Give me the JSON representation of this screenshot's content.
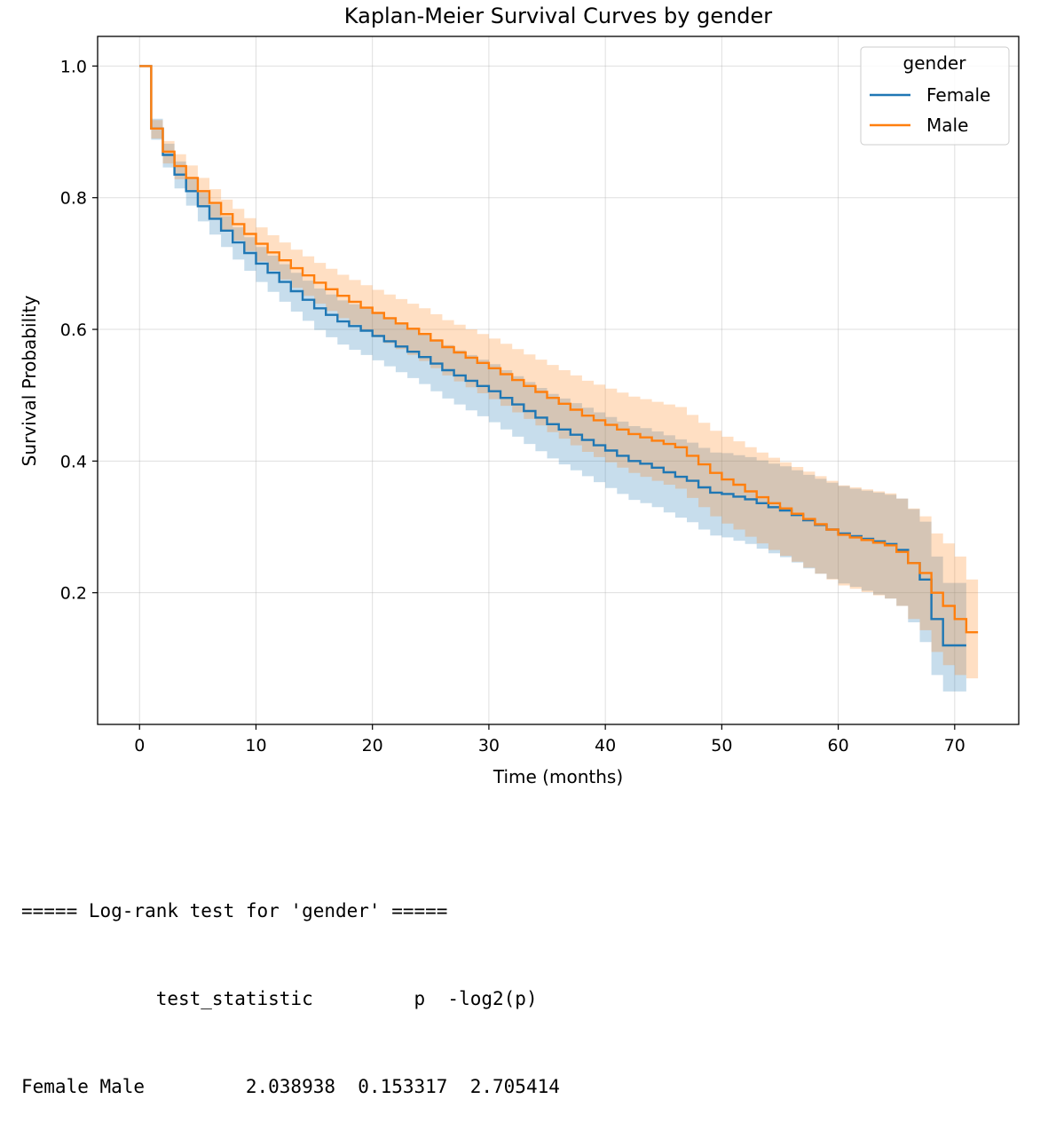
{
  "chart_data": {
    "type": "line",
    "title": "Kaplan-Meier Survival Curves by gender",
    "xlabel": "Time (months)",
    "ylabel": "Survival Probability",
    "xlim": [
      -3.6,
      75.5
    ],
    "ylim": [
      0.0,
      1.045
    ],
    "xticks": [
      0,
      10,
      20,
      30,
      40,
      50,
      60,
      70
    ],
    "xtick_labels": [
      "0",
      "10",
      "20",
      "30",
      "40",
      "50",
      "60",
      "70"
    ],
    "yticks": [
      0.2,
      0.4,
      0.6,
      0.8,
      1.0
    ],
    "ytick_labels": [
      "0.2",
      "0.4",
      "0.6",
      "0.8",
      "1.0"
    ],
    "grid": true,
    "legend": {
      "title": "gender",
      "placement": "top-right"
    },
    "series": [
      {
        "name": "Female",
        "color": "#1f77b4",
        "step": "post",
        "x": [
          0,
          1,
          2,
          3,
          4,
          5,
          6,
          7,
          8,
          9,
          10,
          11,
          12,
          13,
          14,
          15,
          16,
          17,
          18,
          19,
          20,
          21,
          22,
          23,
          24,
          25,
          26,
          27,
          28,
          29,
          30,
          31,
          32,
          33,
          34,
          35,
          36,
          37,
          38,
          39,
          40,
          41,
          42,
          43,
          44,
          45,
          46,
          47,
          48,
          49,
          50,
          51,
          52,
          53,
          54,
          55,
          56,
          57,
          58,
          59,
          60,
          61,
          62,
          63,
          64,
          65,
          66,
          67,
          68,
          69,
          70,
          71
        ],
        "y": [
          1.0,
          0.905,
          0.865,
          0.835,
          0.81,
          0.787,
          0.768,
          0.75,
          0.732,
          0.716,
          0.7,
          0.686,
          0.672,
          0.658,
          0.645,
          0.632,
          0.622,
          0.612,
          0.605,
          0.598,
          0.59,
          0.582,
          0.574,
          0.566,
          0.558,
          0.548,
          0.538,
          0.53,
          0.522,
          0.514,
          0.506,
          0.496,
          0.486,
          0.476,
          0.466,
          0.456,
          0.448,
          0.44,
          0.432,
          0.424,
          0.416,
          0.408,
          0.4,
          0.396,
          0.39,
          0.383,
          0.376,
          0.37,
          0.36,
          0.352,
          0.35,
          0.346,
          0.342,
          0.336,
          0.33,
          0.325,
          0.318,
          0.31,
          0.303,
          0.296,
          0.29,
          0.286,
          0.282,
          0.278,
          0.274,
          0.265,
          0.245,
          0.22,
          0.16,
          0.12,
          0.12,
          0.12
        ],
        "ci_lower": [
          1.0,
          0.888,
          0.846,
          0.814,
          0.788,
          0.764,
          0.744,
          0.725,
          0.706,
          0.689,
          0.672,
          0.657,
          0.642,
          0.627,
          0.613,
          0.599,
          0.588,
          0.577,
          0.569,
          0.561,
          0.553,
          0.544,
          0.535,
          0.526,
          0.517,
          0.506,
          0.495,
          0.486,
          0.477,
          0.468,
          0.459,
          0.448,
          0.437,
          0.426,
          0.415,
          0.404,
          0.395,
          0.386,
          0.377,
          0.368,
          0.359,
          0.35,
          0.341,
          0.336,
          0.33,
          0.322,
          0.314,
          0.307,
          0.296,
          0.287,
          0.284,
          0.279,
          0.274,
          0.267,
          0.26,
          0.254,
          0.246,
          0.237,
          0.229,
          0.221,
          0.214,
          0.209,
          0.203,
          0.197,
          0.191,
          0.18,
          0.155,
          0.125,
          0.075,
          0.05,
          0.05,
          0.05
        ],
        "ci_upper": [
          1.0,
          0.92,
          0.882,
          0.855,
          0.83,
          0.808,
          0.79,
          0.772,
          0.755,
          0.74,
          0.725,
          0.712,
          0.699,
          0.686,
          0.674,
          0.662,
          0.653,
          0.644,
          0.638,
          0.632,
          0.625,
          0.617,
          0.609,
          0.602,
          0.594,
          0.585,
          0.576,
          0.568,
          0.561,
          0.554,
          0.547,
          0.538,
          0.529,
          0.52,
          0.511,
          0.502,
          0.495,
          0.488,
          0.481,
          0.474,
          0.467,
          0.46,
          0.453,
          0.45,
          0.445,
          0.439,
          0.433,
          0.428,
          0.42,
          0.413,
          0.412,
          0.409,
          0.406,
          0.401,
          0.396,
          0.392,
          0.386,
          0.379,
          0.373,
          0.367,
          0.362,
          0.358,
          0.355,
          0.352,
          0.349,
          0.343,
          0.327,
          0.308,
          0.255,
          0.215,
          0.215,
          0.215
        ]
      },
      {
        "name": "Male",
        "color": "#ff7f0e",
        "step": "post",
        "x": [
          0,
          1,
          2,
          3,
          4,
          5,
          6,
          7,
          8,
          9,
          10,
          11,
          12,
          13,
          14,
          15,
          16,
          17,
          18,
          19,
          20,
          21,
          22,
          23,
          24,
          25,
          26,
          27,
          28,
          29,
          30,
          31,
          32,
          33,
          34,
          35,
          36,
          37,
          38,
          39,
          40,
          41,
          42,
          43,
          44,
          45,
          46,
          47,
          48,
          49,
          50,
          51,
          52,
          53,
          54,
          55,
          56,
          57,
          58,
          59,
          60,
          61,
          62,
          63,
          64,
          65,
          66,
          67,
          68,
          69,
          70,
          71,
          72
        ],
        "y": [
          1.0,
          0.905,
          0.87,
          0.848,
          0.83,
          0.81,
          0.792,
          0.775,
          0.76,
          0.745,
          0.73,
          0.717,
          0.705,
          0.693,
          0.682,
          0.671,
          0.661,
          0.651,
          0.642,
          0.633,
          0.625,
          0.617,
          0.609,
          0.601,
          0.593,
          0.583,
          0.573,
          0.565,
          0.557,
          0.549,
          0.541,
          0.532,
          0.523,
          0.514,
          0.505,
          0.496,
          0.487,
          0.478,
          0.469,
          0.462,
          0.455,
          0.448,
          0.441,
          0.436,
          0.431,
          0.426,
          0.421,
          0.408,
          0.395,
          0.382,
          0.372,
          0.364,
          0.354,
          0.345,
          0.336,
          0.328,
          0.32,
          0.312,
          0.304,
          0.296,
          0.288,
          0.284,
          0.28,
          0.276,
          0.272,
          0.262,
          0.245,
          0.23,
          0.2,
          0.18,
          0.16,
          0.14,
          0.14
        ],
        "ci_lower": [
          1.0,
          0.89,
          0.852,
          0.828,
          0.809,
          0.788,
          0.769,
          0.751,
          0.735,
          0.719,
          0.703,
          0.689,
          0.676,
          0.663,
          0.651,
          0.639,
          0.628,
          0.617,
          0.607,
          0.597,
          0.588,
          0.579,
          0.57,
          0.561,
          0.552,
          0.541,
          0.53,
          0.521,
          0.512,
          0.503,
          0.494,
          0.484,
          0.474,
          0.464,
          0.454,
          0.444,
          0.434,
          0.424,
          0.414,
          0.406,
          0.398,
          0.39,
          0.382,
          0.376,
          0.37,
          0.364,
          0.358,
          0.344,
          0.33,
          0.316,
          0.305,
          0.296,
          0.285,
          0.275,
          0.265,
          0.256,
          0.247,
          0.238,
          0.229,
          0.22,
          0.211,
          0.206,
          0.201,
          0.196,
          0.191,
          0.18,
          0.16,
          0.143,
          0.11,
          0.09,
          0.075,
          0.07,
          0.07
        ],
        "ci_upper": [
          1.0,
          0.918,
          0.886,
          0.866,
          0.849,
          0.83,
          0.813,
          0.797,
          0.783,
          0.769,
          0.755,
          0.743,
          0.732,
          0.721,
          0.711,
          0.701,
          0.692,
          0.683,
          0.675,
          0.667,
          0.66,
          0.653,
          0.646,
          0.639,
          0.632,
          0.623,
          0.614,
          0.607,
          0.6,
          0.593,
          0.586,
          0.578,
          0.57,
          0.562,
          0.554,
          0.546,
          0.538,
          0.53,
          0.522,
          0.516,
          0.51,
          0.504,
          0.498,
          0.494,
          0.49,
          0.486,
          0.482,
          0.47,
          0.458,
          0.446,
          0.437,
          0.43,
          0.421,
          0.413,
          0.405,
          0.398,
          0.391,
          0.384,
          0.377,
          0.37,
          0.363,
          0.36,
          0.357,
          0.354,
          0.351,
          0.343,
          0.328,
          0.316,
          0.29,
          0.275,
          0.255,
          0.22,
          0.22
        ]
      }
    ]
  },
  "logrank_output": {
    "header": "===== Log-rank test for 'gender' =====",
    "column_line": "            test_statistic         p  -log2(p)",
    "row_line": "Female Male         2.038938  0.153317  2.705414"
  }
}
